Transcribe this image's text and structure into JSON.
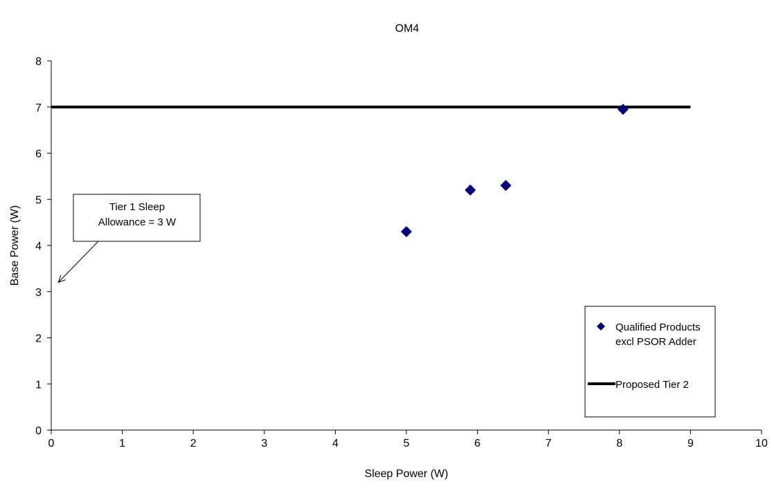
{
  "chart_data": {
    "type": "scatter",
    "title": "OM4",
    "xlabel": "Sleep Power (W)",
    "ylabel": "Base Power (W)",
    "xlim": [
      0,
      10
    ],
    "ylim": [
      0,
      8
    ],
    "xticks": [
      "0",
      "1",
      "2",
      "3",
      "4",
      "5",
      "6",
      "7",
      "8",
      "9",
      "10"
    ],
    "yticks": [
      "0",
      "1",
      "2",
      "3",
      "4",
      "5",
      "6",
      "7",
      "8"
    ],
    "grid": false,
    "legend_position": "right",
    "series": [
      {
        "name": "Qualified Products excl PSOR Adder",
        "legend_lines": [
          "Qualified Products",
          "excl PSOR Adder"
        ],
        "kind": "scatter",
        "marker": "diamond",
        "color": "#000080",
        "points": [
          {
            "x": 5.0,
            "y": 4.3
          },
          {
            "x": 5.9,
            "y": 5.2
          },
          {
            "x": 6.4,
            "y": 5.3
          },
          {
            "x": 8.05,
            "y": 6.95
          }
        ]
      },
      {
        "name": "Proposed Tier 2",
        "legend_lines": [
          "Proposed Tier 2"
        ],
        "kind": "line",
        "color": "#000000",
        "points": [
          {
            "x": 0,
            "y": 7
          },
          {
            "x": 9,
            "y": 7
          }
        ]
      }
    ],
    "annotations": [
      {
        "lines": [
          "Tier 1 Sleep",
          "Allowance = 3 W"
        ],
        "arrow_target": {
          "x": 0.1,
          "y": 3.2
        }
      }
    ]
  }
}
